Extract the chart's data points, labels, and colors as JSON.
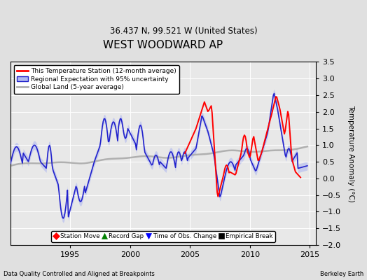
{
  "title": "WEST WOODWARD AP",
  "subtitle": "36.437 N, 99.521 W (United States)",
  "ylabel": "Temperature Anomaly (°C)",
  "footer_left": "Data Quality Controlled and Aligned at Breakpoints",
  "footer_right": "Berkeley Earth",
  "xlim": [
    1990.0,
    2015.5
  ],
  "ylim": [
    -2.0,
    3.5
  ],
  "yticks": [
    -2,
    -1.5,
    -1,
    -0.5,
    0,
    0.5,
    1,
    1.5,
    2,
    2.5,
    3,
    3.5
  ],
  "xticks": [
    1995,
    2000,
    2005,
    2010,
    2015
  ],
  "bg_color": "#e0e0e0",
  "plot_bg_color": "#e8e8e8",
  "grid_color": "#ffffff",
  "title_fontsize": 11,
  "subtitle_fontsize": 8.5,
  "legend1_labels": [
    "This Temperature Station (12-month average)",
    "Regional Expectation with 95% uncertainty",
    "Global Land (5-year average)"
  ],
  "legend2_labels": [
    "Station Move",
    "Record Gap",
    "Time of Obs. Change",
    "Empirical Break"
  ],
  "legend2_colors": [
    "red",
    "green",
    "blue",
    "black"
  ],
  "legend2_markers": [
    "D",
    "^",
    "v",
    "s"
  ],
  "station_color": "#ff0000",
  "regional_color": "#2222cc",
  "regional_fill_color": "#b0b8f0",
  "global_color": "#b0b0b0",
  "station_lw": 1.4,
  "regional_lw": 1.2,
  "global_lw": 1.8
}
